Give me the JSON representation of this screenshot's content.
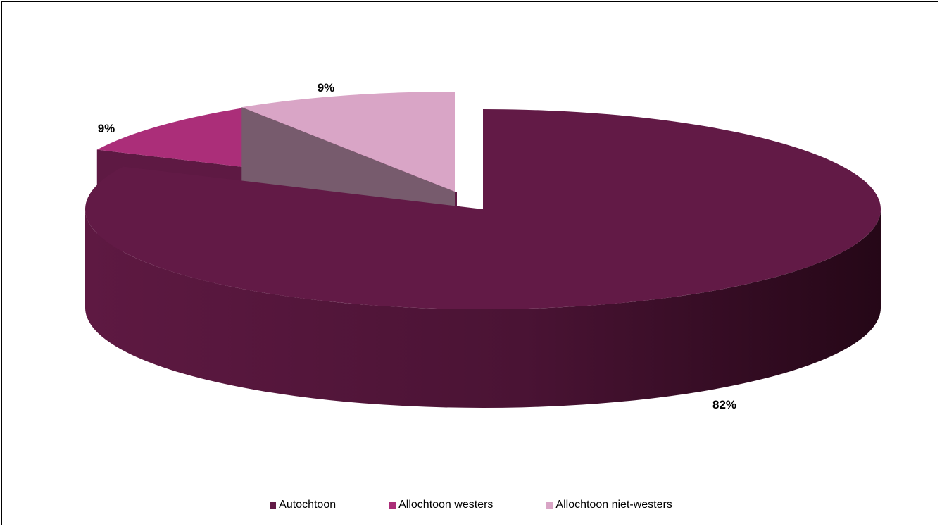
{
  "chart_data": {
    "type": "pie",
    "title": "",
    "three_d": true,
    "exploded": true,
    "categories": [
      "Autochtoon",
      "Allochtoon westers",
      "Allochtoon niet-westers"
    ],
    "values": [
      82,
      9,
      9
    ],
    "data_labels": [
      "82%",
      "9%",
      "9%"
    ],
    "colors": [
      "#621a46",
      "#ab2e79",
      "#d9a5c6"
    ],
    "legend": {
      "position": "bottom",
      "entries": [
        "Autochtoon",
        "Allochtoon westers",
        "Allochtoon niet-westers"
      ]
    }
  }
}
